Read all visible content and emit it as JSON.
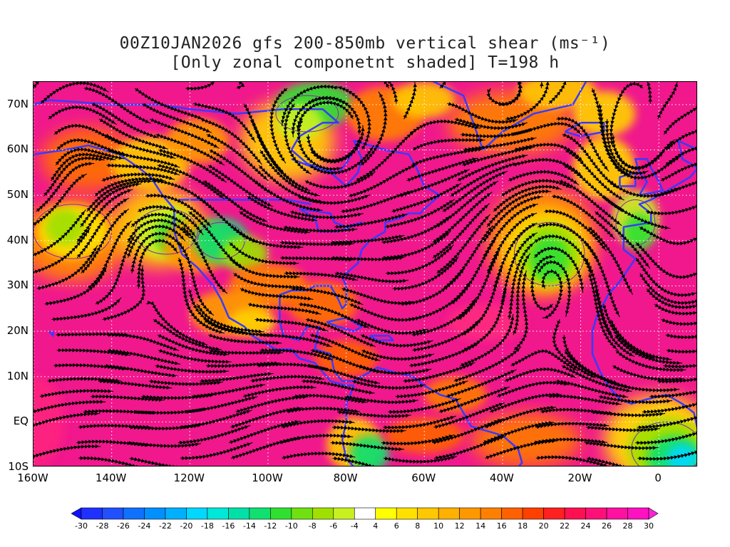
{
  "title": {
    "line1": "00Z10JAN2026 gfs 200-850mb vertical shear (ms⁻¹)",
    "line2": "[Only zonal componetnt shaded] T=198 h"
  },
  "map": {
    "lon_range": [
      -160,
      10
    ],
    "lat_range": [
      -10,
      75
    ],
    "lat_labels": [
      {
        "lat": 70,
        "text": "70N"
      },
      {
        "lat": 60,
        "text": "60N"
      },
      {
        "lat": 50,
        "text": "50N"
      },
      {
        "lat": 40,
        "text": "40N"
      },
      {
        "lat": 30,
        "text": "30N"
      },
      {
        "lat": 20,
        "text": "20N"
      },
      {
        "lat": 10,
        "text": "10N"
      },
      {
        "lat": 0,
        "text": "EQ"
      },
      {
        "lat": -10,
        "text": "10S"
      }
    ],
    "lon_labels": [
      {
        "lon": -160,
        "text": "160W"
      },
      {
        "lon": -140,
        "text": "140W"
      },
      {
        "lon": -120,
        "text": "120W"
      },
      {
        "lon": -100,
        "text": "100W"
      },
      {
        "lon": -80,
        "text": "80W"
      },
      {
        "lon": -60,
        "text": "60W"
      },
      {
        "lon": -40,
        "text": "40W"
      },
      {
        "lon": -20,
        "text": "20W"
      },
      {
        "lon": 0,
        "text": "0"
      }
    ],
    "field_color_background": "#f0188c",
    "coastline_color": "#3a3aff",
    "contour_color": "#9020b0",
    "streamline_color": "#000000"
  },
  "colorbar": {
    "labels": [
      "-30",
      "-28",
      "-26",
      "-24",
      "-22",
      "-20",
      "-18",
      "-16",
      "-14",
      "-12",
      "-10",
      "-8",
      "-6",
      "-4",
      "4",
      "6",
      "8",
      "10",
      "12",
      "14",
      "16",
      "18",
      "20",
      "22",
      "24",
      "26",
      "28",
      "30"
    ],
    "colors": [
      "#1010ff",
      "#2030ff",
      "#2050ff",
      "#1070ff",
      "#0090ff",
      "#00b0ff",
      "#00d8ff",
      "#00e8d8",
      "#00e0a8",
      "#10e070",
      "#30e030",
      "#70e010",
      "#a0e000",
      "#c8f020",
      "#ffffff",
      "#ffff00",
      "#ffe000",
      "#ffc800",
      "#ffb000",
      "#ff9800",
      "#ff8000",
      "#ff6000",
      "#ff4000",
      "#ff2020",
      "#ff1050",
      "#ff1078",
      "#ff10a0",
      "#ff10c0",
      "#ff20d8"
    ]
  }
}
